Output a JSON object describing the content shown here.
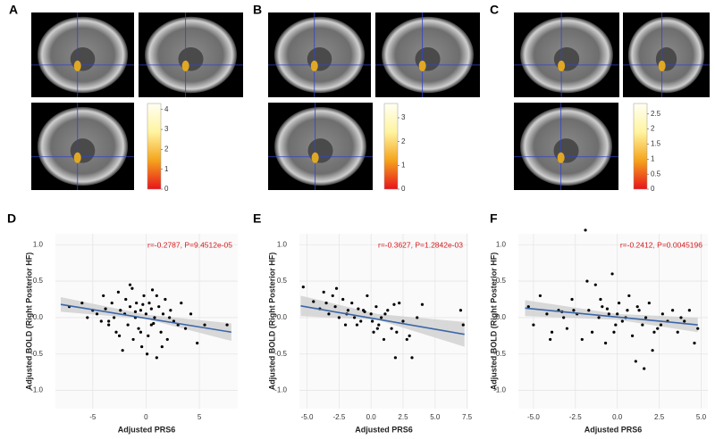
{
  "chart_data": [
    {
      "type": "colorbar",
      "panel": "A",
      "ylim": [
        0,
        4.3
      ],
      "yticks": [
        0,
        1,
        2,
        3,
        4
      ],
      "colors": [
        "#e8141c",
        "#f5a31c",
        "#fff4a0",
        "#fffff4"
      ]
    },
    {
      "type": "colorbar",
      "panel": "B",
      "ylim": [
        0,
        3.6
      ],
      "yticks": [
        0,
        1,
        2,
        3
      ],
      "colors": [
        "#e8141c",
        "#f5a31c",
        "#fff4a0",
        "#fffff4"
      ]
    },
    {
      "type": "colorbar",
      "panel": "C",
      "ylim": [
        0,
        2.85
      ],
      "yticks": [
        0,
        0.5,
        1,
        1.5,
        2,
        2.5
      ],
      "colors": [
        "#e8141c",
        "#f5a31c",
        "#fff4a0",
        "#fffff4"
      ]
    },
    {
      "type": "scatter",
      "panel": "D",
      "annotation": "r=-0.2787, P=9.4512e-05",
      "annotation_color": "#d7191c",
      "x_label": "Adjusted PRS6",
      "y_label": "Adjusted BOLD (Right Posterior HF)",
      "color": "#000000",
      "grid": true,
      "xlim": [
        -8.5,
        8.6
      ],
      "ylim": [
        -1.25,
        1.15
      ],
      "xticks": [
        -5,
        0,
        5
      ],
      "yticks": [
        {
          "value": 1,
          "label": "1.0"
        },
        {
          "value": 0.5,
          "label": "0.5"
        },
        {
          "value": 0,
          "label": "0.0"
        },
        {
          "value": -0.5,
          "label": "-0.5"
        },
        {
          "value": -1,
          "label": "-1.0"
        }
      ],
      "x": [
        -7.2,
        -6,
        -5.5,
        -5,
        -4.6,
        -4.2,
        -4,
        -3.8,
        -3.5,
        -3.2,
        -3,
        -2.8,
        -2.6,
        -2.4,
        -2.2,
        -2,
        -1.9,
        -1.7,
        -1.5,
        -1.3,
        -1.2,
        -1,
        -0.9,
        -0.7,
        -0.5,
        -0.4,
        -0.2,
        0,
        0.1,
        0.3,
        0.5,
        0.6,
        0.8,
        1,
        1.2,
        1.4,
        1.6,
        1.8,
        2,
        2.3,
        2.6,
        3,
        3.3,
        3.7,
        4.2,
        4.8,
        5.5,
        7.6,
        -2.5,
        -1.5,
        -0.5,
        0.5,
        1.5,
        -3.5,
        -1,
        0.2,
        1,
        2.2,
        -0.3,
        0.7
      ],
      "values": [
        0.15,
        0.2,
        0.0,
        0.1,
        0.05,
        -0.05,
        0.3,
        0.12,
        -0.1,
        0.2,
        0.0,
        -0.2,
        0.35,
        0.1,
        -0.45,
        0.05,
        0.25,
        -0.1,
        0.15,
        0.4,
        -0.3,
        0.0,
        0.2,
        -0.15,
        0.1,
        -0.4,
        0.3,
        0.05,
        -0.5,
        0.2,
        -0.1,
        0.38,
        0.0,
        -0.55,
        0.15,
        -0.2,
        0.05,
        0.25,
        -0.3,
        0.1,
        -0.05,
        -0.1,
        0.2,
        -0.15,
        0.05,
        -0.35,
        -0.1,
        -0.1,
        -0.25,
        0.45,
        -0.2,
        0.12,
        -0.4,
        -0.05,
        0.08,
        -0.25,
        0.3,
        0.0,
        0.18,
        -0.08
      ],
      "fit": {
        "color": "#3a66a8",
        "x": [
          -8,
          8
        ],
        "values": [
          0.18,
          -0.2
        ]
      },
      "band": {
        "color": "#cfcfcf",
        "x": [
          -8,
          0,
          8
        ],
        "lower": [
          0.08,
          -0.02,
          -0.32
        ],
        "upper": [
          0.28,
          0.04,
          -0.08
        ]
      }
    },
    {
      "type": "scatter",
      "panel": "E",
      "annotation": "r=-0.3627, P=1.2842e-03",
      "annotation_color": "#d7191c",
      "x_label": "Adjusted PRS6",
      "y_label": "Adjusted BOLD (Right Posterior HF)",
      "color": "#000000",
      "grid": true,
      "xlim": [
        -5.6,
        7.6
      ],
      "ylim": [
        -1.25,
        1.15
      ],
      "xticks": [
        {
          "value": -5,
          "label": "-5.0"
        },
        {
          "value": -2.5,
          "label": "-2.5"
        },
        {
          "value": 0,
          "label": "0.0"
        },
        {
          "value": 2.5,
          "label": "2.5"
        },
        {
          "value": 5,
          "label": "5.0"
        },
        7.5
      ],
      "yticks": [
        {
          "value": 1,
          "label": "1.0"
        },
        {
          "value": 0.5,
          "label": "0.5"
        },
        {
          "value": 0,
          "label": "0.0"
        },
        {
          "value": -0.5,
          "label": "-0.5"
        },
        {
          "value": -1,
          "label": "-1.0"
        }
      ],
      "x": [
        -5.3,
        -4.5,
        -4,
        -3.7,
        -3.3,
        -3,
        -2.8,
        -2.5,
        -2.2,
        -2,
        -1.8,
        -1.5,
        -1.3,
        -1,
        -0.8,
        -0.5,
        -0.3,
        0,
        0.2,
        0.4,
        0.6,
        0.8,
        1,
        1.3,
        1.6,
        1.9,
        2.2,
        2.5,
        2.8,
        3.2,
        3.6,
        4,
        7,
        7.2,
        -2.7,
        -1.1,
        0.1,
        1.1,
        2,
        -3.5,
        -0.6,
        0.5,
        1.8,
        -1.9,
        3
      ],
      "values": [
        0.42,
        0.22,
        0.12,
        0.35,
        0.05,
        0.3,
        0.15,
        0.0,
        0.25,
        -0.1,
        0.1,
        0.2,
        0.0,
        0.12,
        -0.05,
        0.08,
        0.3,
        0.05,
        -0.2,
        0.15,
        -0.1,
        0.0,
        -0.3,
        0.1,
        -0.15,
        -0.55,
        0.2,
        -0.05,
        -0.3,
        -0.55,
        0.0,
        0.18,
        0.1,
        -0.1,
        0.4,
        -0.1,
        -0.05,
        0.05,
        -0.2,
        0.2,
        0.1,
        -0.15,
        0.18,
        0.05,
        -0.25
      ],
      "fit": {
        "color": "#3a66a8",
        "x": [
          -5.5,
          7.3
        ],
        "values": [
          0.16,
          -0.23
        ]
      },
      "band": {
        "color": "#cfcfcf",
        "x": [
          -5.5,
          0.5,
          7.3
        ],
        "lower": [
          0.02,
          -0.03,
          -0.4
        ],
        "upper": [
          0.3,
          0.05,
          -0.06
        ]
      }
    },
    {
      "type": "scatter",
      "panel": "F",
      "annotation": "r=-0.2412, P=0.0045196",
      "annotation_color": "#d7191c",
      "x_label": "Adjusted PRS6",
      "y_label": "Adjusted BOLD (Right Posterior HF)",
      "color": "#000000",
      "grid": true,
      "xlim": [
        -5.9,
        5.4
      ],
      "ylim": [
        -1.25,
        1.15
      ],
      "xticks": [
        {
          "value": -5,
          "label": "-5.0"
        },
        {
          "value": -2.5,
          "label": "-2.5"
        },
        {
          "value": 0,
          "label": "0.0"
        },
        {
          "value": 2.5,
          "label": "2.5"
        },
        {
          "value": 5,
          "label": "5.0"
        }
      ],
      "yticks": [
        {
          "value": 1,
          "label": "1.0"
        },
        {
          "value": 0.5,
          "label": "0.5"
        },
        {
          "value": 0,
          "label": "0.0"
        },
        {
          "value": -0.5,
          "label": "-0.5"
        },
        {
          "value": -1,
          "label": "-1.0"
        }
      ],
      "x": [
        -5.3,
        -5,
        -4.6,
        -4.2,
        -3.9,
        -3.5,
        -3.2,
        -3,
        -2.7,
        -2.4,
        -2.1,
        -1.9,
        -1.7,
        -1.5,
        -1.3,
        -1.1,
        -0.9,
        -0.7,
        -0.5,
        -0.3,
        -0.1,
        0.1,
        0.3,
        0.5,
        0.7,
        0.9,
        1.1,
        1.3,
        1.5,
        1.7,
        1.9,
        2.1,
        2.4,
        2.7,
        3,
        3.3,
        3.6,
        4,
        4.3,
        4.6,
        4.8,
        -1.8,
        -0.2,
        0.6,
        1.6,
        -2.6,
        -1,
        2.6,
        3.8,
        -4,
        0.0,
        1.2,
        -3.3,
        2.2,
        -0.6
      ],
      "values": [
        0.15,
        -0.1,
        0.3,
        0.05,
        -0.2,
        0.1,
        0.0,
        -0.15,
        0.25,
        0.05,
        -0.3,
        1.2,
        0.1,
        -0.2,
        0.45,
        0.0,
        0.15,
        -0.35,
        0.05,
        0.6,
        -0.1,
        0.2,
        -0.05,
        0.0,
        0.3,
        -0.25,
        -0.6,
        0.1,
        -0.1,
        0.0,
        0.2,
        -0.45,
        -0.15,
        0.05,
        -0.05,
        0.1,
        -0.2,
        -0.05,
        0.1,
        -0.35,
        -0.15,
        0.5,
        -0.2,
        0.1,
        -0.7,
        0.1,
        0.25,
        -0.1,
        0.0,
        -0.3,
        0.05,
        0.15,
        0.08,
        -0.2,
        0.12
      ],
      "fit": {
        "color": "#3a66a8",
        "x": [
          -5.5,
          4.8
        ],
        "values": [
          0.13,
          -0.1
        ]
      },
      "band": {
        "color": "#cfcfcf",
        "x": [
          -5.5,
          0,
          4.8
        ],
        "lower": [
          0.02,
          -0.03,
          -0.2
        ],
        "upper": [
          0.24,
          0.05,
          0.0
        ]
      }
    }
  ]
}
